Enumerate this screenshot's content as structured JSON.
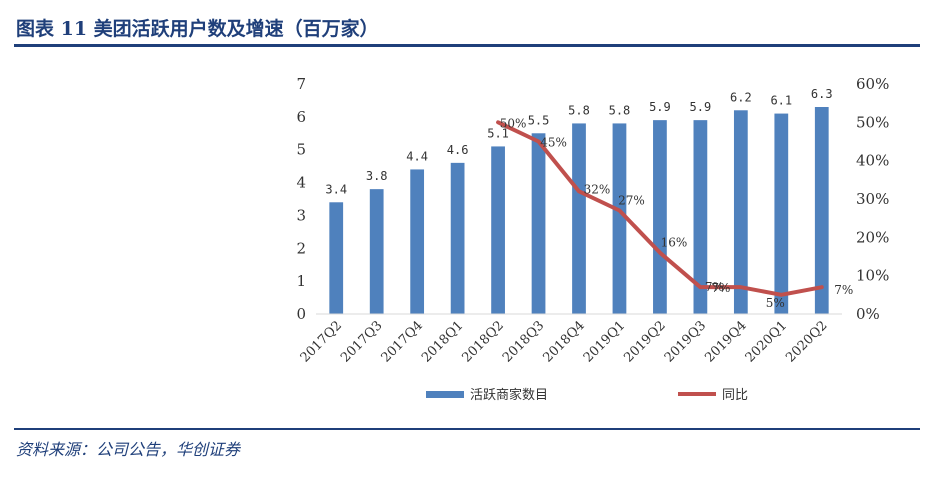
{
  "header": {
    "title": "图表 11 美团活跃用户数及增速（百万家）"
  },
  "footer": {
    "source": "资料来源：公司公告，华创证券"
  },
  "chart_data": {
    "type": "bar",
    "categories": [
      "2017Q2",
      "2017Q3",
      "2017Q4",
      "2018Q1",
      "2018Q2",
      "2018Q3",
      "2018Q4",
      "2019Q1",
      "2019Q2",
      "2019Q3",
      "2019Q4",
      "2020Q1",
      "2020Q2"
    ],
    "series": [
      {
        "name": "活跃商家数目",
        "type": "bar",
        "axis": "left",
        "color": "#4f81bd",
        "values": [
          3.4,
          3.8,
          4.4,
          4.6,
          5.1,
          5.5,
          5.8,
          5.8,
          5.9,
          5.9,
          6.2,
          6.1,
          6.3
        ],
        "labels": [
          "3.4",
          "3.8",
          "4.4",
          "4.6",
          "5.1",
          "5.5",
          "5.8",
          "5.8",
          "5.9",
          "5.9",
          "6.2",
          "6.1",
          "6.3"
        ]
      },
      {
        "name": "同比",
        "type": "line",
        "axis": "right",
        "color": "#c0504d",
        "values": [
          null,
          null,
          null,
          null,
          50,
          45,
          32,
          27,
          16,
          7,
          7,
          5,
          7
        ],
        "labels": [
          "",
          "",
          "",
          "",
          "50%",
          "45%",
          "32%",
          "27%",
          "16%",
          "7%",
          "7%",
          "5%",
          "7%"
        ]
      }
    ],
    "y_left": {
      "ylim": [
        0,
        7
      ],
      "ticks": [
        "0",
        "1",
        "2",
        "3",
        "4",
        "5",
        "6",
        "7"
      ]
    },
    "y_right": {
      "ylim": [
        0,
        60
      ],
      "ticks": [
        "0%",
        "10%",
        "20%",
        "30%",
        "40%",
        "50%",
        "60%"
      ]
    },
    "grid": false,
    "legend_position": "bottom"
  }
}
